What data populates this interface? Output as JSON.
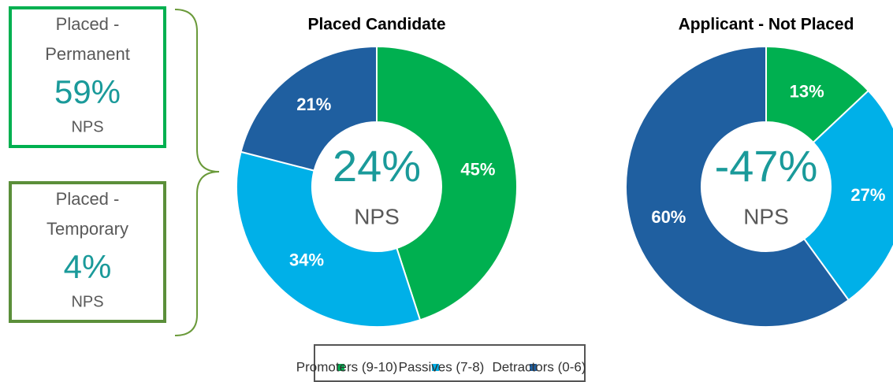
{
  "boxes": [
    {
      "lines": [
        "Placed -",
        "Permanent"
      ],
      "value": "59%",
      "unit": "NPS",
      "color": "#00b050"
    },
    {
      "lines": [
        "Placed -",
        "Temporary"
      ],
      "value": "4%",
      "unit": "NPS",
      "color": "#5b8f3a"
    }
  ],
  "chart_data": [
    {
      "type": "donut",
      "title": "Placed Candidate",
      "categories": [
        "Promoters (9-10)",
        "Passives (7-8)",
        "Detractors (0-6)"
      ],
      "values": [
        45,
        34,
        21
      ],
      "value_labels": [
        "45%",
        "34%",
        "21%"
      ],
      "colors": [
        "#00b050",
        "#00b0e8",
        "#1f5fa0"
      ],
      "center_text": "24%",
      "center_subtext": "NPS"
    },
    {
      "type": "donut",
      "title": "Applicant - Not Placed",
      "categories": [
        "Promoters (9-10)",
        "Passives (7-8)",
        "Detractors (0-6)"
      ],
      "values": [
        13,
        27,
        60
      ],
      "value_labels": [
        "13%",
        "27%",
        "60%"
      ],
      "colors": [
        "#00b050",
        "#00b0e8",
        "#1f5fa0"
      ],
      "center_text": "-47%",
      "center_subtext": "NPS"
    }
  ]
}
